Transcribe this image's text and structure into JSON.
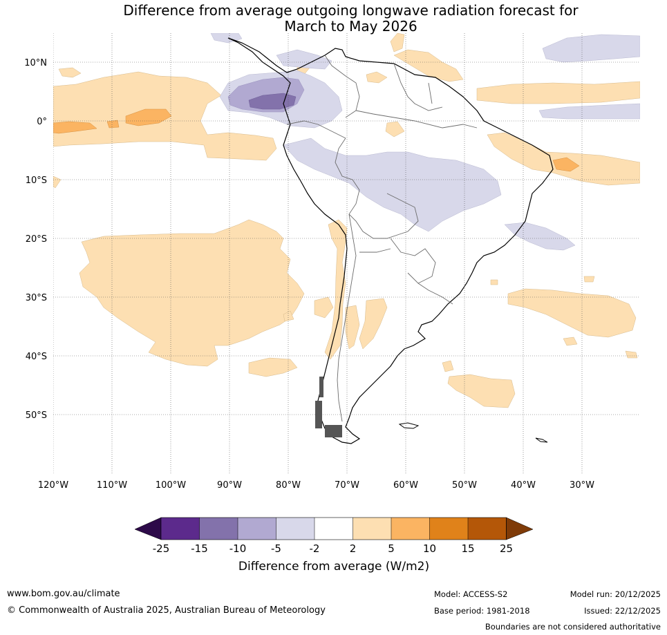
{
  "map": {
    "title_line1": "Difference from average outgoing longwave radiation forecast for",
    "title_line2": "March to May 2026",
    "lat_labels": [
      "10°N",
      "0°",
      "10°S",
      "20°S",
      "30°S",
      "40°S",
      "50°S"
    ],
    "lon_labels": [
      "120°W",
      "110°W",
      "100°W",
      "90°W",
      "80°W",
      "70°W",
      "60°W",
      "50°W",
      "40°W",
      "30°W"
    ]
  },
  "colorbar": {
    "title": "Difference from average (W/m2)",
    "ticks": [
      "-25",
      "-15",
      "-10",
      "-5",
      "-2",
      "2",
      "5",
      "10",
      "15",
      "25"
    ],
    "colors": [
      "#5c2a8c",
      "#8372ab",
      "#b1a9d1",
      "#d8d8ea",
      "#ffffff",
      "#fddfb2",
      "#fbb462",
      "#e0821a",
      "#b45708"
    ],
    "under_color": "#2d0a49",
    "over_color": "#7f3b08"
  },
  "footer": {
    "website": "www.bom.gov.au/climate",
    "copyright": "© Commonwealth of Australia 2025, Australian Bureau of Meteorology",
    "model": "Model: ACCESS-S2",
    "base_period": "Base period: 1981-2018",
    "model_run": "Model run: 20/12/2025",
    "issued": "Issued: 22/12/2025",
    "disclaimer": "Boundaries are not considered authoritative"
  }
}
